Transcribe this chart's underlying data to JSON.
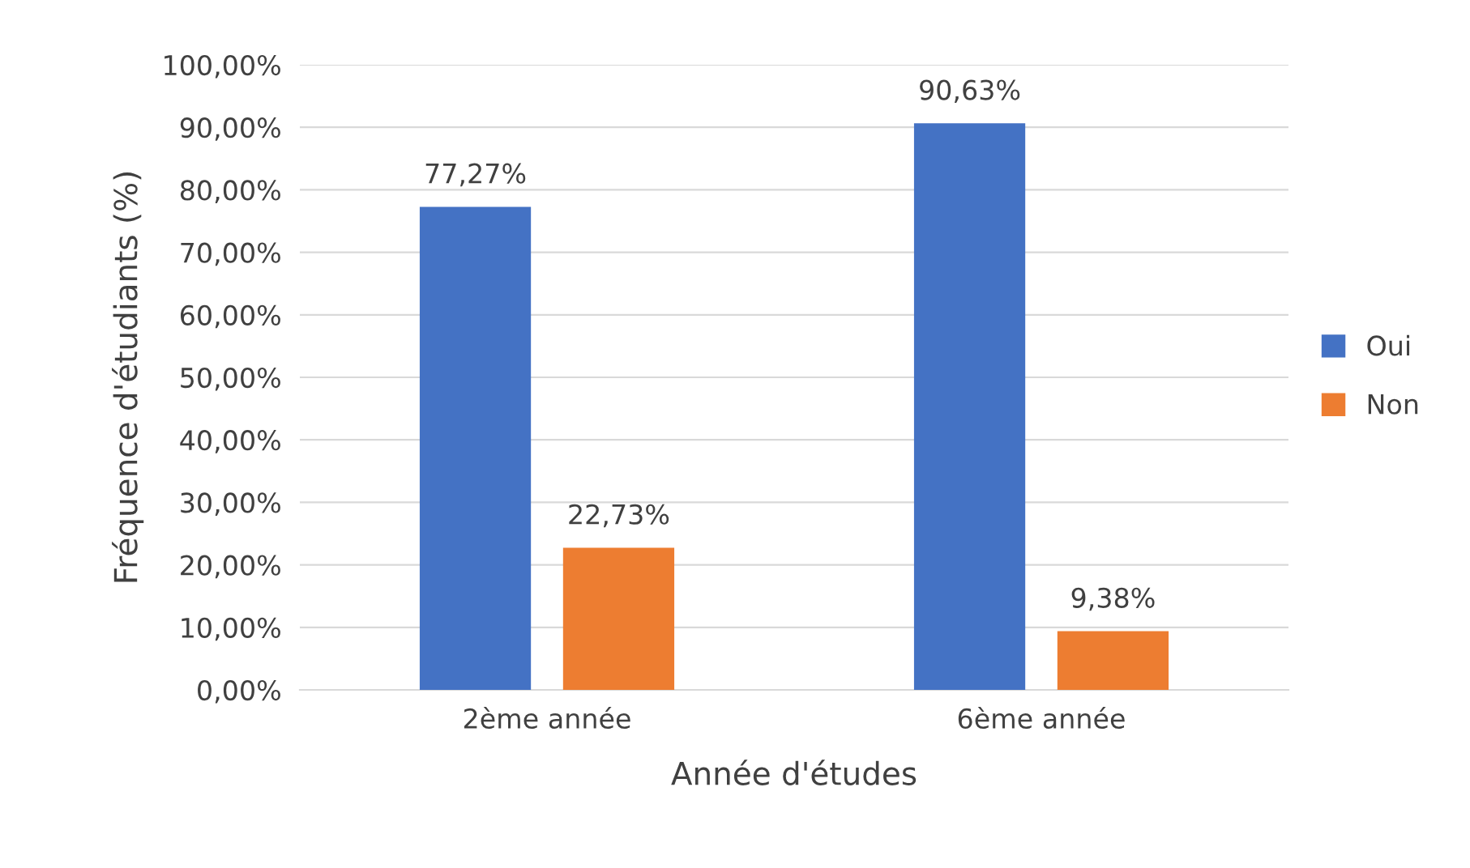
{
  "chart_data": {
    "type": "bar",
    "xlabel": "Année d'études",
    "ylabel": "Fréquence d'étudiants (%)",
    "categories": [
      "2ème année",
      "6ème année"
    ],
    "series": [
      {
        "name": "Oui",
        "color": "#4472c4",
        "values": [
          77.27,
          90.63
        ],
        "value_labels": [
          "77,27%",
          "90,63%"
        ]
      },
      {
        "name": "Non",
        "color": "#ed7d31",
        "values": [
          22.73,
          9.38
        ],
        "value_labels": [
          "22,73%",
          "9,38%"
        ]
      }
    ],
    "ylim": [
      0,
      100
    ],
    "yticks": [
      {
        "value": 0,
        "label": "0,00%"
      },
      {
        "value": 10,
        "label": "10,00%"
      },
      {
        "value": 20,
        "label": "20,00%"
      },
      {
        "value": 30,
        "label": "30,00%"
      },
      {
        "value": 40,
        "label": "40,00%"
      },
      {
        "value": 50,
        "label": "50,00%"
      },
      {
        "value": 60,
        "label": "60,00%"
      },
      {
        "value": 70,
        "label": "70,00%"
      },
      {
        "value": 80,
        "label": "80,00%"
      },
      {
        "value": 90,
        "label": "90,00%"
      },
      {
        "value": 100,
        "label": "100,00%"
      }
    ],
    "grid": "y",
    "legend": "right"
  }
}
